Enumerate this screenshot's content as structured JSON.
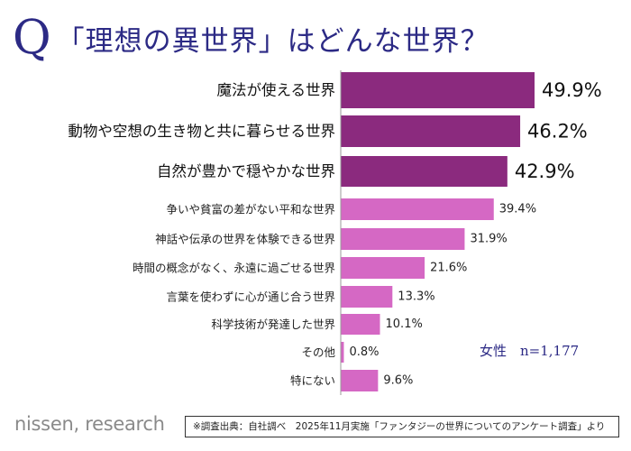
{
  "title": {
    "q": "Q",
    "text": "「理想の異世界」はどんな世界？"
  },
  "chart_data": {
    "type": "bar",
    "orientation": "horizontal",
    "categories": [
      "魔法が使える世界",
      "動物や空想の生き物と共に暮らせる世界",
      "自然が豊かで穏やかな世界",
      "争いや貧富の差がない平和な世界",
      "神話や伝承の世界を体験できる世界",
      "時間の概念がなく、永遠に過ごせる世界",
      "言葉を使わずに心が通じ合う世界",
      "科学技術が発達した世界",
      "その他",
      "特にない"
    ],
    "values": [
      49.9,
      46.2,
      42.9,
      39.4,
      31.9,
      21.6,
      13.3,
      10.1,
      0.8,
      9.6
    ],
    "value_labels": [
      "49.9%",
      "46.2%",
      "42.9%",
      "39.4%",
      "31.9%",
      "21.6%",
      "13.3%",
      "10.1%",
      "0.8%",
      "9.6%"
    ],
    "highlight_top_n": 3,
    "colors": {
      "top": "#8b2a7e",
      "rest": "#d568c4"
    },
    "xlim": [
      0,
      60
    ],
    "unit": "%"
  },
  "sample_label": "女性　n=1,177",
  "logo_text": "nissen, research",
  "source_note": "※調査出典：自社調べ　2025年11月実施「ファンタジーの世界についてのアンケート調査」より"
}
